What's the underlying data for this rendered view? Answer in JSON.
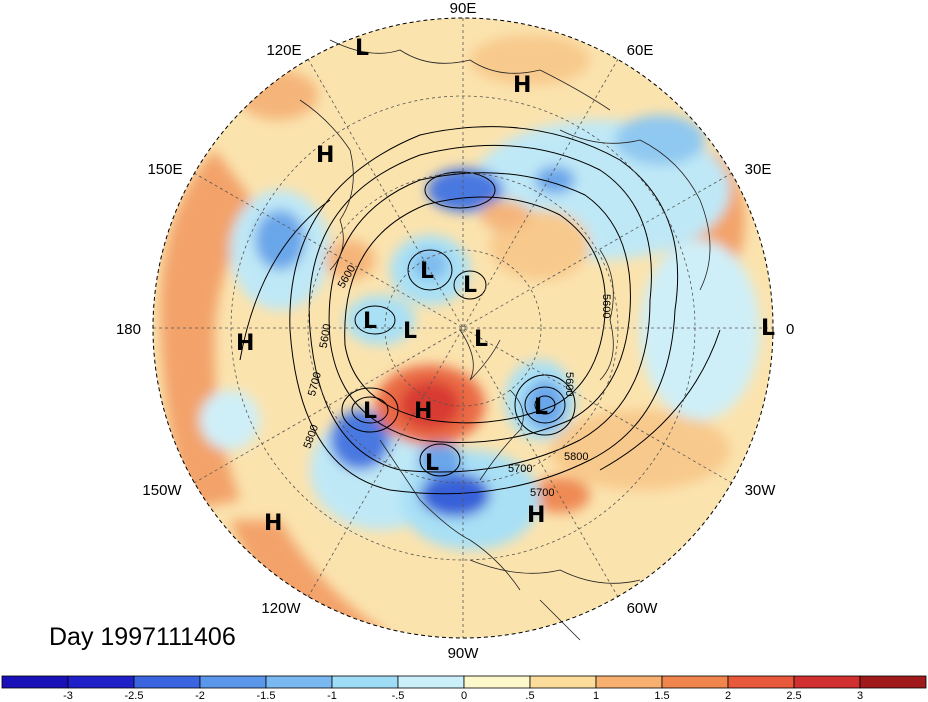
{
  "title": "Day 1997111406",
  "longitude_labels": {
    "e90": "90E",
    "e60": "60E",
    "e30": "30E",
    "zero": "0",
    "w30": "30W",
    "w60": "60W",
    "w90": "90W",
    "w120": "120W",
    "w150": "150W",
    "d180": "180",
    "e150": "150E",
    "e120": "120E"
  },
  "pressure_centers": [
    {
      "type": "L"
    },
    {
      "type": "H"
    },
    {
      "type": "H"
    },
    {
      "type": "L"
    },
    {
      "type": "L"
    },
    {
      "type": "L"
    },
    {
      "type": "L"
    },
    {
      "type": "L"
    },
    {
      "type": "H"
    },
    {
      "type": "L"
    },
    {
      "type": "H"
    },
    {
      "type": "L"
    },
    {
      "type": "L"
    },
    {
      "type": "H"
    },
    {
      "type": "H"
    }
  ],
  "contour_labels": [
    "5600",
    "5600",
    "5700",
    "5800",
    "5600",
    "5600",
    "5700",
    "5800",
    "5700"
  ],
  "colorbar": {
    "ticks": [
      "-3",
      "-2.5",
      "-2",
      "-1.5",
      "-1",
      "-.5",
      "0",
      ".5",
      "1",
      "1.5",
      "2",
      "2.5",
      "3"
    ],
    "colors": [
      "#2020c8",
      "#3a64e0",
      "#5a96ea",
      "#7ab8f2",
      "#9fdcf6",
      "#ccf0fa",
      "#fdf7cc",
      "#fbdc9a",
      "#f8b070",
      "#f0864e",
      "#e8583a",
      "#d03030",
      "#a01a1c"
    ]
  }
}
